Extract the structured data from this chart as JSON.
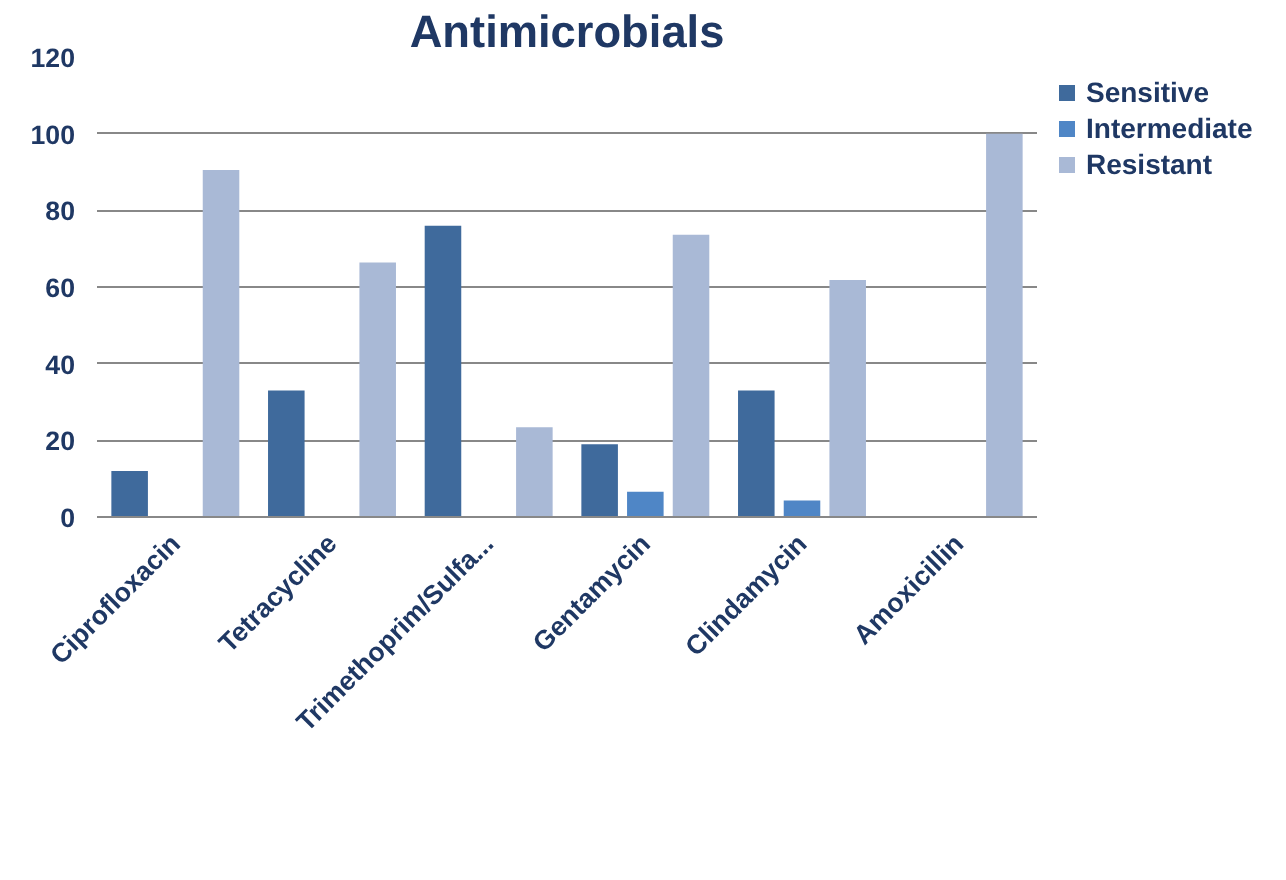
{
  "chart_data": {
    "type": "bar",
    "title": "Antimicrobials",
    "categories": [
      "Ciprofloxacin",
      "Tetracycline",
      "Trimethoprim/Sulfa...",
      "Gentamycin",
      "Clindamycin",
      "Amoxicillin"
    ],
    "series": [
      {
        "name": "Sensitive",
        "color": "#3f6a9c",
        "values": [
          12,
          33,
          76,
          19,
          33,
          0
        ]
      },
      {
        "name": "Intermediate",
        "color": "#4f86c6",
        "values": [
          0,
          0,
          0,
          6.6,
          4.3,
          0
        ]
      },
      {
        "name": "Resistant",
        "color": "#a9b9d6",
        "values": [
          90.5,
          66.4,
          23.4,
          73.6,
          61.8,
          100
        ]
      }
    ],
    "ylim": [
      0,
      120
    ],
    "yticks": [
      0,
      20,
      40,
      60,
      80,
      100,
      120
    ],
    "grid": "y",
    "legend": "top right"
  }
}
